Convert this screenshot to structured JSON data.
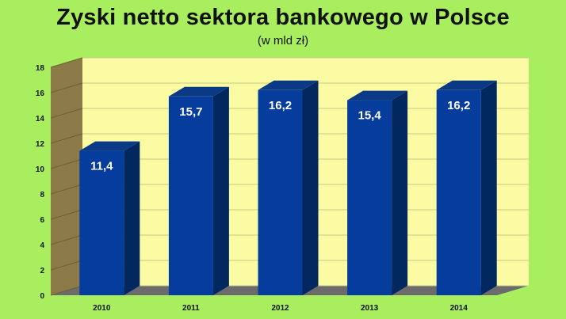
{
  "chart_data": {
    "type": "bar",
    "title": "Zyski netto sektora bankowego w Polsce",
    "subtitle": "(w mld zł)",
    "categories": [
      "2010",
      "2011",
      "2012",
      "2013",
      "2014"
    ],
    "values": [
      11.4,
      15.7,
      16.2,
      15.4,
      16.2
    ],
    "value_labels": [
      "11,4",
      "15,7",
      "16,2",
      "15,4",
      "16,2"
    ],
    "xlabel": "",
    "ylabel": "",
    "ylim": [
      0,
      18
    ],
    "yticks": [
      0,
      2,
      4,
      6,
      8,
      10,
      12,
      14,
      16,
      18
    ],
    "grid": true,
    "legend": "none",
    "style": "3d-column"
  },
  "colors": {
    "background": "#a9ee5f",
    "plot_back": "#fafba3",
    "plot_side": "#8c7a48",
    "floor": "#6b6b6b",
    "bar_front": "#063c9c",
    "bar_side": "#03275f",
    "bar_top": "#0a3a86"
  }
}
